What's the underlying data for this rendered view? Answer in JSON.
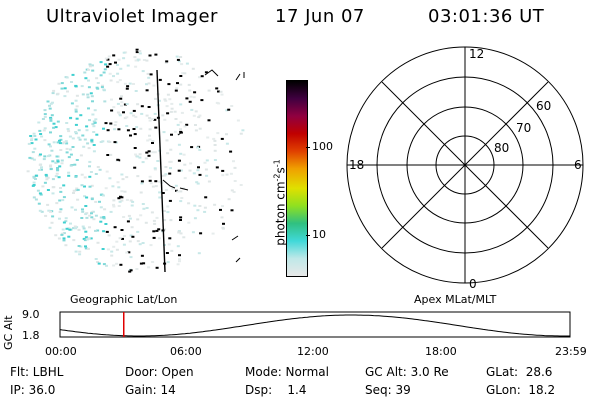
{
  "header": {
    "title": "Ultraviolet Imager",
    "date": "17 Jun 07",
    "time": "03:01:36 UT"
  },
  "colorbar": {
    "units_main": "photon cm",
    "units_sup1": "-2",
    "units_mid": "s",
    "units_sup2": "-1",
    "ticks": [
      "100",
      "10"
    ],
    "colors": [
      "#e8e8e8",
      "#bfe8e8",
      "#40d8d8",
      "#30c080",
      "#90e020",
      "#e0e000",
      "#f0a000",
      "#e04000",
      "#c00000",
      "#900040",
      "#400040",
      "#000000"
    ]
  },
  "polar": {
    "mlt_labels": {
      "top": "12",
      "bottom": "0",
      "left": "18",
      "right": "6"
    },
    "lat_labels": [
      "60",
      "70",
      "80"
    ]
  },
  "altitude": {
    "left_label": "Geographic Lat/Lon",
    "right_label": "Apex MLat/MLT",
    "y_label": "GC Alt",
    "y_max": "9.0",
    "y_min": "1.8",
    "x_ticks": [
      "00:00",
      "06:00",
      "12:00",
      "18:00",
      "23:59"
    ],
    "current_time_fraction": 0.125
  },
  "info": {
    "flt": "Flt: LBHL",
    "ip": "IP: 36.0",
    "door": "Door: Open",
    "gain": "Gain: 14",
    "mode": "Mode: Normal",
    "dsp": "Dsp:    1.4",
    "gcalt": "GC Alt: 3.0 Re",
    "seq": "Seq: 39",
    "glat": "GLat:  28.6",
    "glon": "GLon:  18.2"
  }
}
